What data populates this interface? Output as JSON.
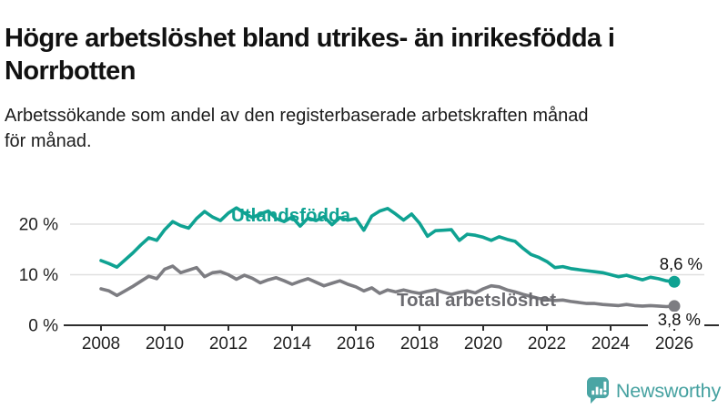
{
  "header": {
    "title_line1": "Högre arbetslöshet bland utrikes- än inrikesfödda i",
    "title_line2": "Norrbotten",
    "subtitle_line1": "Arbetssökande som andel av den registerbaserade arbetskraften månad",
    "subtitle_line2": "för månad."
  },
  "chart_data": {
    "type": "line",
    "title": "Högre arbetslöshet bland utrikes- än inrikesfödda i Norrbotten",
    "subtitle": "Arbetssökande som andel av den registerbaserade arbetskraften månad för månad.",
    "legend_position": "inline-labels-on-lines",
    "grid": "horizontal",
    "x_axis": {
      "start_year": 2008,
      "step_years": 0.25,
      "tick_labels": [
        "2008",
        "2010",
        "2012",
        "2014",
        "2016",
        "2018",
        "2020",
        "2022",
        "2024",
        "2026"
      ],
      "tick_years": [
        2008,
        2010,
        2012,
        2014,
        2016,
        2018,
        2020,
        2022,
        2024,
        2026
      ],
      "xlim": [
        2007.2,
        2026.5
      ]
    },
    "y_axis": {
      "ticks": [
        {
          "value": 0,
          "label": "0 %"
        },
        {
          "value": 10,
          "label": "10 %"
        },
        {
          "value": 20,
          "label": "20 %"
        }
      ],
      "grid_values": [
        10,
        20
      ],
      "ylim": [
        0,
        24
      ]
    },
    "series": [
      {
        "name": "Utlandsfödda",
        "color": "#0fa292",
        "label_color": "#0fa292",
        "end_label": "8,6 %",
        "end_value": 8.6,
        "values": [
          12.8,
          12.2,
          11.5,
          12.9,
          14.3,
          15.9,
          17.3,
          16.8,
          18.9,
          20.5,
          19.7,
          19.2,
          21.1,
          22.5,
          21.4,
          20.7,
          22.2,
          23.2,
          22.2,
          21.3,
          22.0,
          22.6,
          21.1,
          20.5,
          21.4,
          19.6,
          21.2,
          20.7,
          21.5,
          19.9,
          21.3,
          20.8,
          21.1,
          18.8,
          21.6,
          22.6,
          23.1,
          22.0,
          20.8,
          22.0,
          20.2,
          17.6,
          18.7,
          18.8,
          18.9,
          16.8,
          18.0,
          17.8,
          17.4,
          16.8,
          17.5,
          17.0,
          16.6,
          15.2,
          14.0,
          13.4,
          12.6,
          11.4,
          11.6,
          11.2,
          11.0,
          10.8,
          10.6,
          10.4,
          10.0,
          9.6,
          9.9,
          9.4,
          9.0,
          9.5,
          9.2,
          8.8,
          8.6
        ]
      },
      {
        "name": "Total arbetslöshet",
        "color": "#7d7d82",
        "label_color": "#6b6b70",
        "end_label": "3,8 %",
        "end_value": 3.8,
        "values": [
          7.2,
          6.8,
          5.9,
          6.8,
          7.7,
          8.7,
          9.7,
          9.2,
          11.1,
          11.7,
          10.4,
          10.9,
          11.4,
          9.6,
          10.4,
          10.6,
          10.0,
          9.1,
          9.9,
          9.3,
          8.4,
          9.0,
          9.4,
          8.8,
          8.1,
          8.7,
          9.2,
          8.5,
          7.8,
          8.3,
          8.8,
          8.1,
          7.6,
          6.8,
          7.4,
          6.3,
          7.0,
          6.6,
          7.0,
          6.6,
          6.3,
          6.7,
          7.0,
          6.5,
          6.1,
          6.5,
          6.8,
          6.4,
          7.2,
          7.8,
          7.6,
          7.0,
          6.6,
          6.1,
          5.7,
          5.3,
          5.1,
          4.9,
          5.0,
          4.7,
          4.5,
          4.3,
          4.3,
          4.1,
          4.0,
          3.9,
          4.1,
          3.9,
          3.8,
          3.9,
          3.8,
          3.7,
          3.8
        ]
      }
    ]
  },
  "branding": {
    "logo_text": "Newsworthy",
    "logo_icon": "bar-chart-speech-bubble-icon",
    "brand_color": "#45a1a0"
  },
  "colors": {
    "axis": "#2d2d2d",
    "gridline": "#e0e0e0",
    "tick_label": "#222222",
    "end_label": "#111111",
    "background": "#ffffff"
  }
}
